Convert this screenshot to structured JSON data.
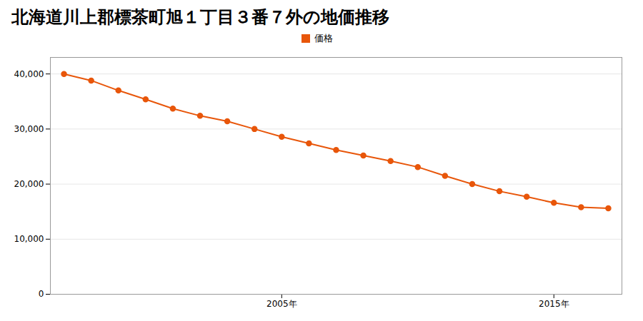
{
  "chart_data": {
    "type": "line",
    "title": "北海道川上郡標茶町旭１丁目３番７外の地価推移",
    "x": [
      1997,
      1998,
      1999,
      2000,
      2001,
      2002,
      2003,
      2004,
      2005,
      2006,
      2007,
      2008,
      2009,
      2010,
      2011,
      2012,
      2013,
      2014,
      2015,
      2016,
      2017
    ],
    "series": [
      {
        "name": "価格",
        "color": "#e8560a",
        "marker": "circle",
        "values": [
          40000,
          38800,
          37000,
          35400,
          33700,
          32400,
          31400,
          30000,
          28600,
          27400,
          26200,
          25200,
          24200,
          23100,
          21500,
          20000,
          18700,
          17700,
          16600,
          15800,
          15600
        ]
      }
    ],
    "xlim": [
      1996.5,
      2017.5
    ],
    "xticks": [
      {
        "value": 2005,
        "label": "2005年"
      },
      {
        "value": 2015,
        "label": "2015年"
      }
    ],
    "ylim": [
      0,
      43000
    ],
    "yticks": [
      0,
      {
        "value": 10000,
        "label": "10,000"
      },
      {
        "value": 20000,
        "label": "20,000"
      },
      {
        "value": 30000,
        "label": "30,000"
      },
      {
        "value": 40000,
        "label": "40,000"
      }
    ],
    "grid": "y",
    "legend": "top"
  }
}
